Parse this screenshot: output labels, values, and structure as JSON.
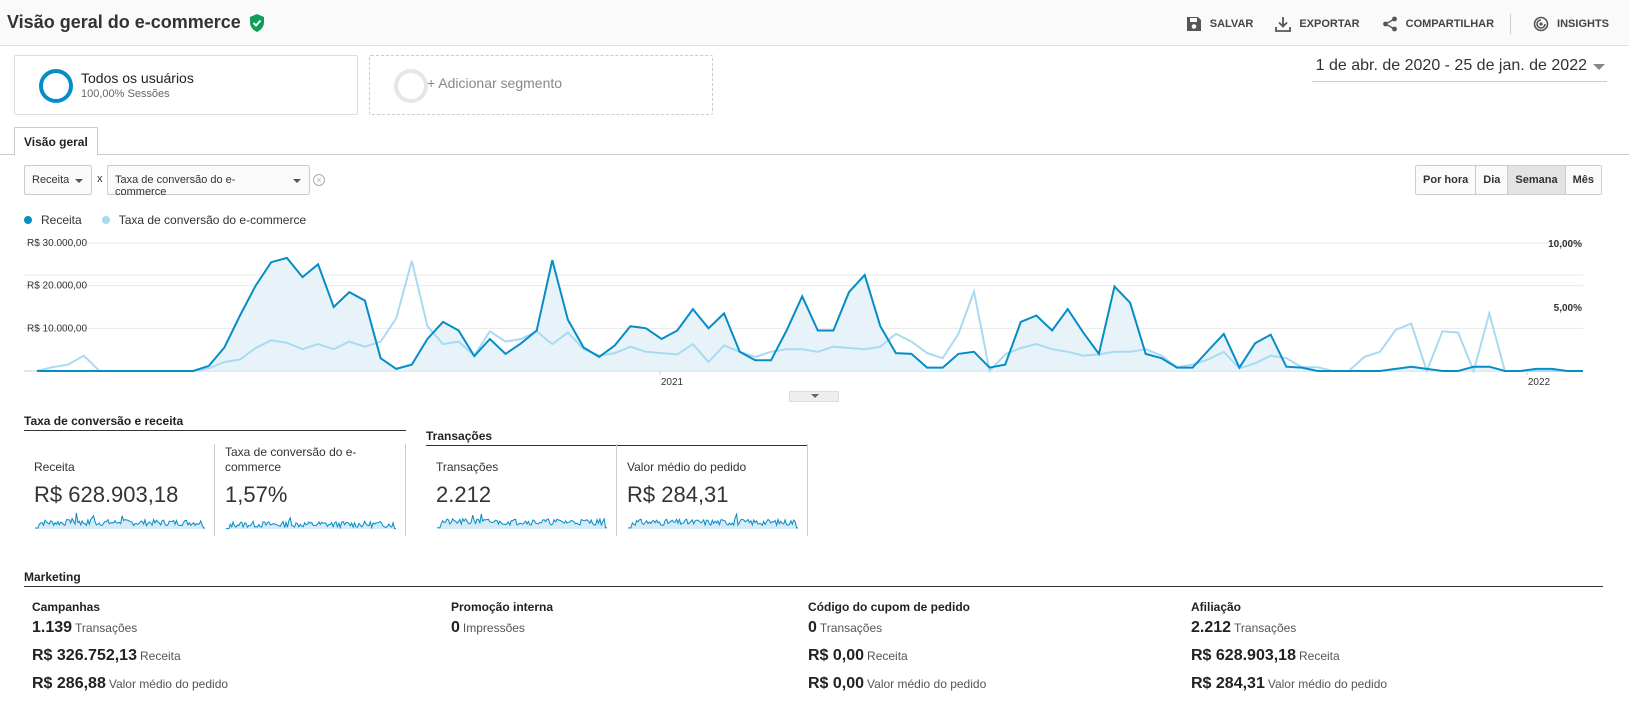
{
  "header": {
    "title": "Visão geral do e-commerce",
    "actions": {
      "save": "SALVAR",
      "export": "EXPORTAR",
      "share": "COMPARTILHAR",
      "insights": "INSIGHTS"
    }
  },
  "segments": [
    {
      "title": "Todos os usuários",
      "subtitle": "100,00% Sessões"
    },
    {
      "title": "+ Adicionar segmento"
    }
  ],
  "date_range": "1 de abr. de 2020 - 25 de jan. de 2022",
  "tab": "Visão geral",
  "metric_selectors": {
    "primary": "Receita",
    "separator": "x",
    "secondary": "Taxa de conversão do e-commerce"
  },
  "granularity": [
    "Por hora",
    "Dia",
    "Semana",
    "Mês"
  ],
  "granularity_selected": "Semana",
  "colors": {
    "primary": "#058dc7",
    "secondary": "#a8dbf2",
    "fill": "#e4f1f8"
  },
  "chart_data": {
    "type": "line",
    "series": [
      {
        "name": "Receita",
        "axis": "left",
        "values": [
          0,
          0,
          0,
          0,
          0,
          0,
          0,
          0,
          0,
          0,
          0,
          1200,
          5500,
          13000,
          20000,
          25500,
          26500,
          22000,
          25000,
          15000,
          18500,
          16500,
          3000,
          500,
          1500,
          7500,
          11500,
          9500,
          3500,
          7500,
          4000,
          6500,
          9500,
          26000,
          12000,
          5500,
          3300,
          6000,
          10500,
          10000,
          7500,
          9500,
          14500,
          10000,
          13500,
          4500,
          2500,
          2500,
          9500,
          17500,
          9500,
          9500,
          18500,
          22500,
          10500,
          4200,
          4000,
          800,
          800,
          4000,
          4500,
          800,
          1500,
          11500,
          13000,
          9500,
          14500,
          9000,
          4000,
          19800,
          16000,
          4000,
          3000,
          800,
          800,
          4800,
          8700,
          800,
          6500,
          8500,
          1000,
          800,
          0,
          0,
          0,
          0,
          0,
          500,
          1000,
          500,
          0,
          0,
          1000,
          1000,
          0,
          0,
          500,
          500,
          0,
          0
        ],
        "value_labels": []
      },
      {
        "name": "Taxa de conversão do e-commerce",
        "axis": "right",
        "values": [
          0,
          0.3,
          0.5,
          1.2,
          0,
          0,
          0,
          0,
          0,
          0,
          0,
          0.2,
          0.7,
          0.9,
          1.8,
          2.4,
          2.2,
          1.7,
          2.1,
          1.7,
          2.3,
          1.9,
          2.3,
          4.1,
          8.6,
          3.5,
          2.1,
          2.3,
          1.2,
          3.1,
          2.3,
          2.5,
          3.1,
          2.1,
          3.0,
          1.7,
          1.2,
          1.4,
          1.9,
          1.5,
          1.4,
          1.3,
          2.1,
          0.7,
          2.0,
          1.5,
          1.1,
          1.5,
          1.7,
          1.7,
          1.5,
          1.9,
          1.8,
          1.7,
          1.9,
          2.9,
          2.3,
          1.4,
          1.0,
          2.9,
          6.2,
          0,
          1.3,
          1.8,
          2.1,
          1.7,
          1.5,
          1.2,
          1.3,
          1.5,
          1.5,
          1.7,
          1.2,
          0.3,
          0.5,
          0.9,
          1.5,
          0.2,
          0.6,
          1.2,
          1.0,
          0.3,
          0.3,
          0,
          0,
          1.1,
          1.5,
          3.2,
          3.7,
          0,
          3.1,
          3.0,
          0,
          4.5,
          0,
          0,
          0,
          0,
          0,
          0
        ],
        "value_labels": []
      }
    ],
    "x_tick_labels": [
      "2021",
      "2022"
    ],
    "y_left_ticks": [
      "R$ 30.000,00",
      "R$ 20.000,00",
      "R$ 10.000,00"
    ],
    "y_right_ticks": [
      "10,00%",
      "5,00%"
    ],
    "ylim_left": [
      0,
      30000
    ],
    "ylim_right": [
      0,
      10
    ],
    "grid": true,
    "legend_position": "top-left"
  },
  "sections": {
    "conv": "Taxa de conversão e receita",
    "trans": "Transações",
    "marketing": "Marketing"
  },
  "metrics": [
    {
      "label": "Receita",
      "value": "R$ 628.903,18"
    },
    {
      "label": "Taxa de conversão do e-commerce",
      "value": "1,57%"
    },
    {
      "label": "Transações",
      "value": "2.212"
    },
    {
      "label": "Valor médio do pedido",
      "value": "R$ 284,31"
    }
  ],
  "marketing": [
    {
      "title": "Campanhas",
      "rows": [
        {
          "value": "1.139",
          "unit": "Transações"
        },
        {
          "value": "R$ 326.752,13",
          "unit": "Receita"
        },
        {
          "value": "R$ 286,88",
          "unit": "Valor médio do pedido"
        }
      ]
    },
    {
      "title": "Promoção interna",
      "rows": [
        {
          "value": "0",
          "unit": "Impressões"
        }
      ]
    },
    {
      "title": "Código do cupom de pedido",
      "rows": [
        {
          "value": "0",
          "unit": "Transações"
        },
        {
          "value": "R$ 0,00",
          "unit": "Receita"
        },
        {
          "value": "R$ 0,00",
          "unit": "Valor médio do pedido"
        }
      ]
    },
    {
      "title": "Afiliação",
      "rows": [
        {
          "value": "2.212",
          "unit": "Transações"
        },
        {
          "value": "R$ 628.903,18",
          "unit": "Receita"
        },
        {
          "value": "R$ 284,31",
          "unit": "Valor médio do pedido"
        }
      ]
    }
  ]
}
